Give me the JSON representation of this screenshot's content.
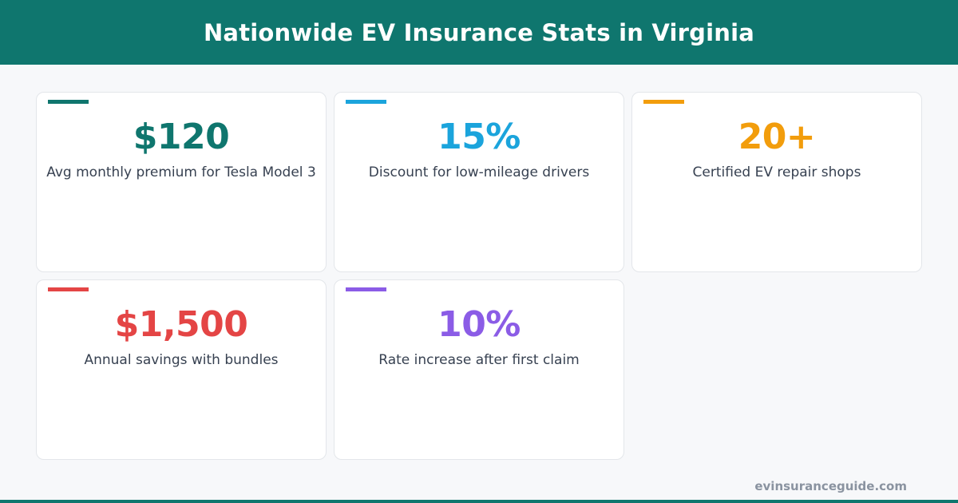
{
  "header": {
    "title": "Nationwide EV Insurance Stats in Virginia"
  },
  "stats": [
    {
      "value": "$120",
      "label": "Avg monthly premium for Tesla Model 3",
      "color": "#0f766e"
    },
    {
      "value": "15%",
      "label": "Discount for low-mileage drivers",
      "color": "#1ba4dc"
    },
    {
      "value": "20+",
      "label": "Certified EV repair shops",
      "color": "#f29d0c"
    },
    {
      "value": "$1,500",
      "label": "Annual savings with bundles",
      "color": "#e44545"
    },
    {
      "value": "10%",
      "label": "Rate increase after first claim",
      "color": "#8b5ce6"
    }
  ],
  "footer": {
    "url": "evinsuranceguide.com"
  },
  "colors": {
    "brand": "#0f766e",
    "background": "#f7f8fa"
  }
}
